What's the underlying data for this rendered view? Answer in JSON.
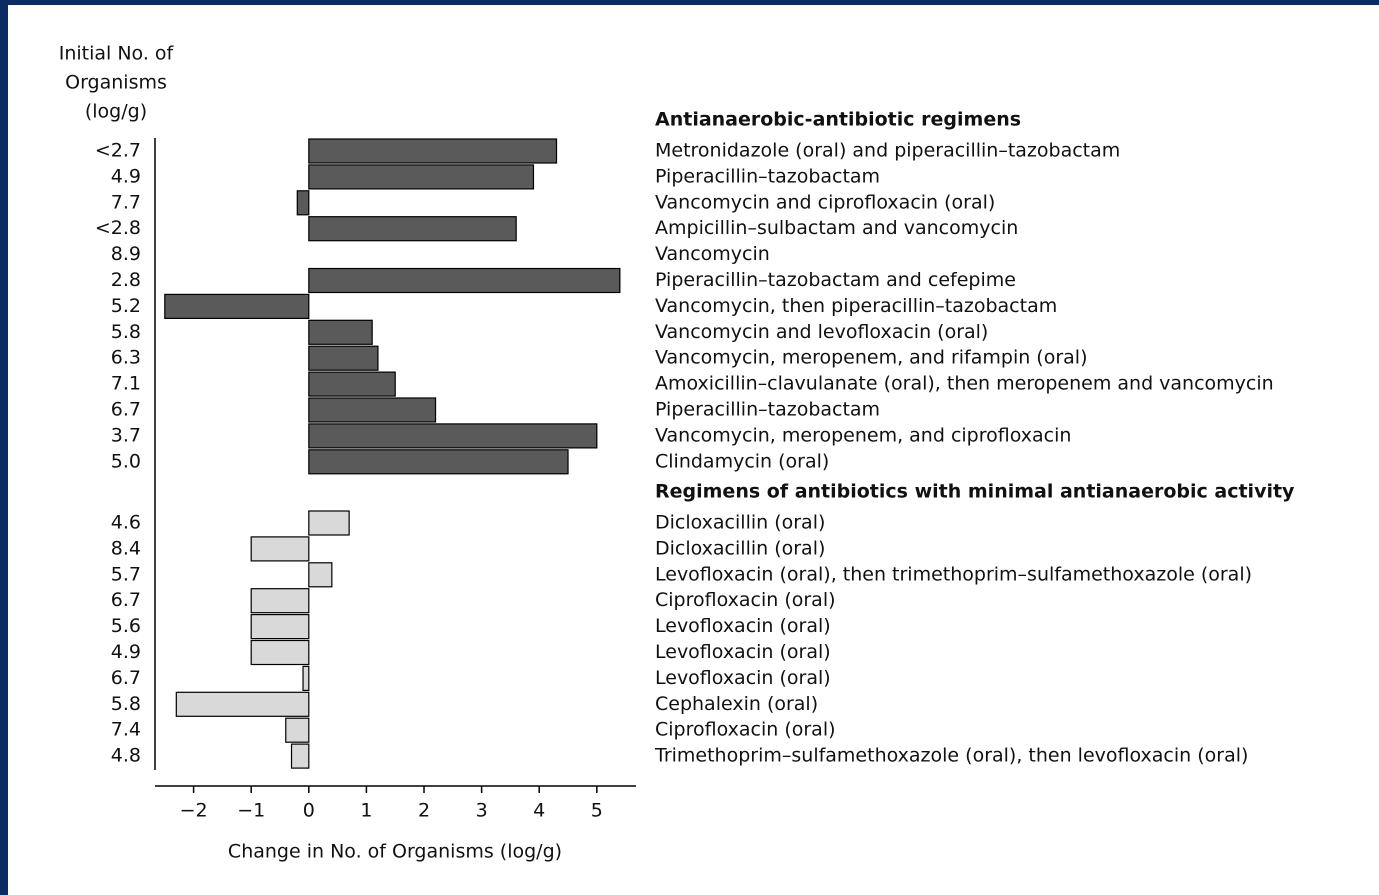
{
  "chart_data": {
    "type": "bar",
    "y_label": [
      "Initial No. of",
      "Organisms",
      "(log/g)"
    ],
    "x_label": "Change in No. of Organisms (log/g)",
    "xlim": [
      -2.67,
      5.68
    ],
    "xticks": [
      {
        "value": -2,
        "label": "−2"
      },
      {
        "value": -1,
        "label": "−1"
      },
      0,
      1,
      2,
      3,
      4,
      5
    ],
    "groups": [
      {
        "title": "Antianaerobic-antibiotic regimens",
        "color": "#5a5a5a",
        "rows": [
          {
            "initial": "<2.7",
            "regimen": "Metronidazole (oral) and piperacillin–tazobactam",
            "value": 4.3
          },
          {
            "initial": "4.9",
            "regimen": "Piperacillin–tazobactam",
            "value": 3.9
          },
          {
            "initial": "7.7",
            "regimen": "Vancomycin and ciprofloxacin (oral)",
            "value": -0.2
          },
          {
            "initial": "<2.8",
            "regimen": "Ampicillin–sulbactam and vancomycin",
            "value": 3.6
          },
          {
            "initial": "8.9",
            "regimen": "Vancomycin",
            "value": 0
          },
          {
            "initial": "2.8",
            "regimen": "Piperacillin–tazobactam and cefepime",
            "value": 5.4
          },
          {
            "initial": "5.2",
            "regimen": "Vancomycin, then piperacillin–tazobactam",
            "value": -2.5
          },
          {
            "initial": "5.8",
            "regimen": "Vancomycin and levofloxacin (oral)",
            "value": 1.1
          },
          {
            "initial": "6.3",
            "regimen": "Vancomycin, meropenem, and rifampin (oral)",
            "value": 1.2
          },
          {
            "initial": "7.1",
            "regimen": "Amoxicillin–clavulanate (oral), then meropenem and vancomycin",
            "value": 1.5
          },
          {
            "initial": "6.7",
            "regimen": "Piperacillin–tazobactam",
            "value": 2.2
          },
          {
            "initial": "3.7",
            "regimen": "Vancomycin, meropenem, and ciprofloxacin",
            "value": 5.0
          },
          {
            "initial": "5.0",
            "regimen": "Clindamycin (oral)",
            "value": 4.5
          }
        ]
      },
      {
        "title": "Regimens of antibiotics with minimal antianaerobic activity",
        "color": "#d9d9d9",
        "rows": [
          {
            "initial": "4.6",
            "regimen": "Dicloxacillin (oral)",
            "value": 0.7
          },
          {
            "initial": "8.4",
            "regimen": "Dicloxacillin (oral)",
            "value": -1.0
          },
          {
            "initial": "5.7",
            "regimen": "Levofloxacin (oral), then trimethoprim–sulfamethoxazole (oral)",
            "value": 0.4
          },
          {
            "initial": "6.7",
            "regimen": "Ciprofloxacin (oral)",
            "value": -1.0
          },
          {
            "initial": "5.6",
            "regimen": "Levofloxacin (oral)",
            "value": -1.0
          },
          {
            "initial": "4.9",
            "regimen": "Levofloxacin (oral)",
            "value": -1.0
          },
          {
            "initial": "6.7",
            "regimen": "Levofloxacin (oral)",
            "value": -0.1
          },
          {
            "initial": "5.8",
            "regimen": "Cephalexin (oral)",
            "value": -2.3
          },
          {
            "initial": "7.4",
            "regimen": "Ciprofloxacin (oral)",
            "value": -0.4
          },
          {
            "initial": "4.8",
            "regimen": "Trimethoprim–sulfamethoxazole (oral), then levofloxacin (oral)",
            "value": -0.3
          }
        ]
      }
    ]
  }
}
